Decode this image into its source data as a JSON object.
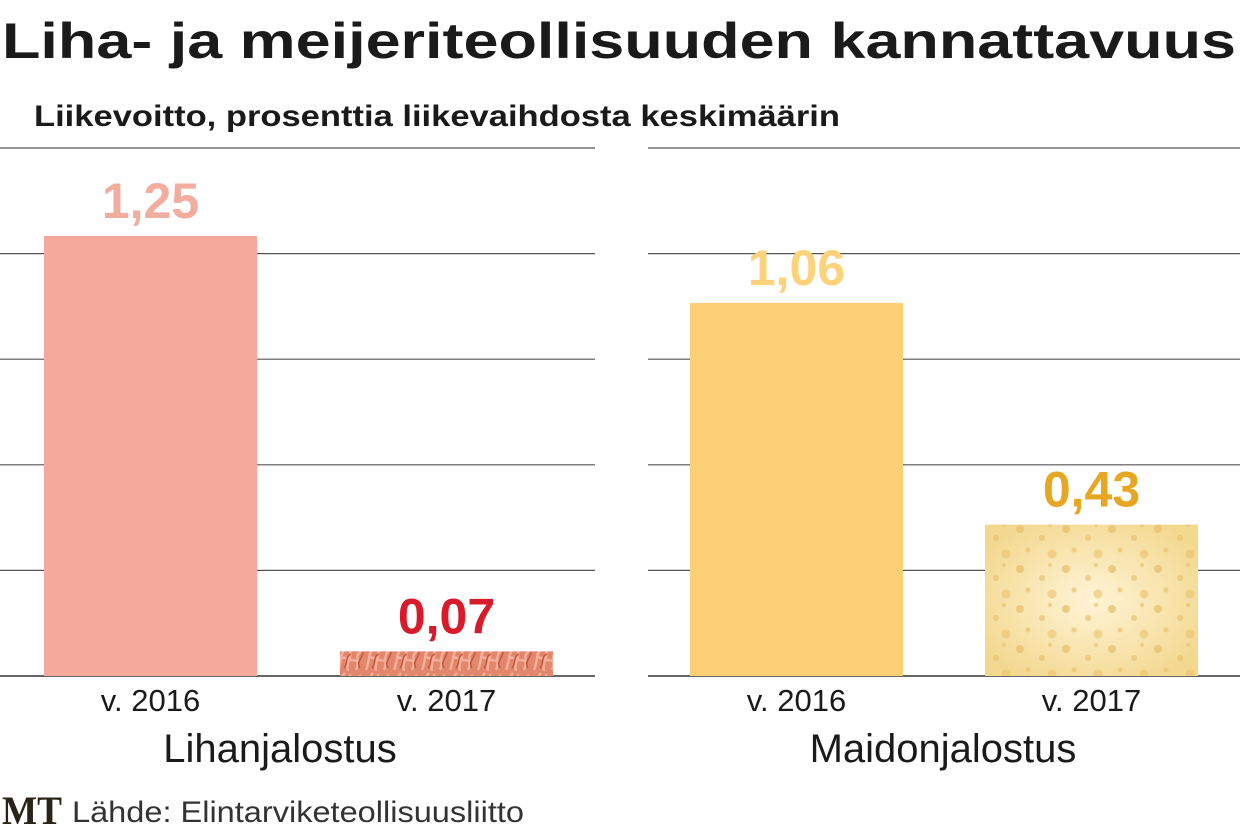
{
  "title": "Liha- ja meijeriteollisuuden kannattavuus",
  "subtitle": "Liikevoitto, prosenttia liikevaihdosta keskimäärin",
  "source": "Lähde: Elintarviketeollisuusliitto",
  "logo": "MT",
  "chart_data": [
    {
      "type": "bar",
      "group": "Lihanjalostus",
      "categories": [
        "v. 2016",
        "v. 2017"
      ],
      "values": [
        1.25,
        0.07
      ],
      "value_labels": [
        "1,25",
        "0,07"
      ],
      "bar_colors": [
        "#f5a99c",
        "#e2876c"
      ],
      "label_colors": [
        "#f2ad9f",
        "#d91a2a"
      ],
      "ylim": [
        0,
        1.5
      ],
      "gridlines": [
        0,
        0.3,
        0.6,
        0.9,
        1.2,
        1.5
      ],
      "ylabel": "Liikevoitto, % liikevaihdosta"
    },
    {
      "type": "bar",
      "group": "Maidonjalostus",
      "categories": [
        "v. 2016",
        "v. 2017"
      ],
      "values": [
        1.06,
        0.43
      ],
      "value_labels": [
        "1,06",
        "0,43"
      ],
      "bar_colors": [
        "#fdd077",
        "#f7e0a4"
      ],
      "label_colors": [
        "#fcd27a",
        "#e8a722"
      ],
      "ylim": [
        0,
        1.5
      ],
      "gridlines": [
        0,
        0.3,
        0.6,
        0.9,
        1.2,
        1.5
      ],
      "ylabel": "Liikevoitto, % liikevaihdosta"
    }
  ]
}
